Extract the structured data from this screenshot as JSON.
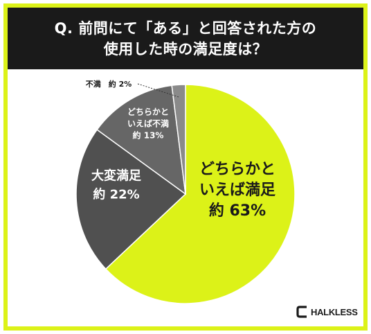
{
  "title": {
    "line1": "Q. 前問にて「ある」と回答された方の",
    "line2": "使用した時の満足度は？"
  },
  "brand": {
    "logo_text": "HALKLESS"
  },
  "colors": {
    "frame": "#dcf218",
    "title_bg": "#1a1a1a",
    "title_text": "#ffffff"
  },
  "chart_data": {
    "type": "pie",
    "start_angle_deg": 0,
    "direction": "clockwise",
    "slices": [
      {
        "label_lines": [
          "どちらかと",
          "いえば満足"
        ],
        "value_text": "約 63%",
        "value": 63,
        "color": "#dcf218",
        "text_color": "#1a1a1a"
      },
      {
        "label_lines": [
          "大変満足"
        ],
        "value_text": "約 22%",
        "value": 22,
        "color": "#505050",
        "text_color": "#ffffff"
      },
      {
        "label_lines": [
          "どちらかと",
          "いえば不満"
        ],
        "value_text": "約 13%",
        "value": 13,
        "color": "#666666",
        "text_color": "#ffffff"
      },
      {
        "label_lines": [
          "不満"
        ],
        "value_text": "約 2%",
        "value": 2,
        "color": "#8a8a8a",
        "text_color": "#1a1a1a"
      }
    ]
  }
}
